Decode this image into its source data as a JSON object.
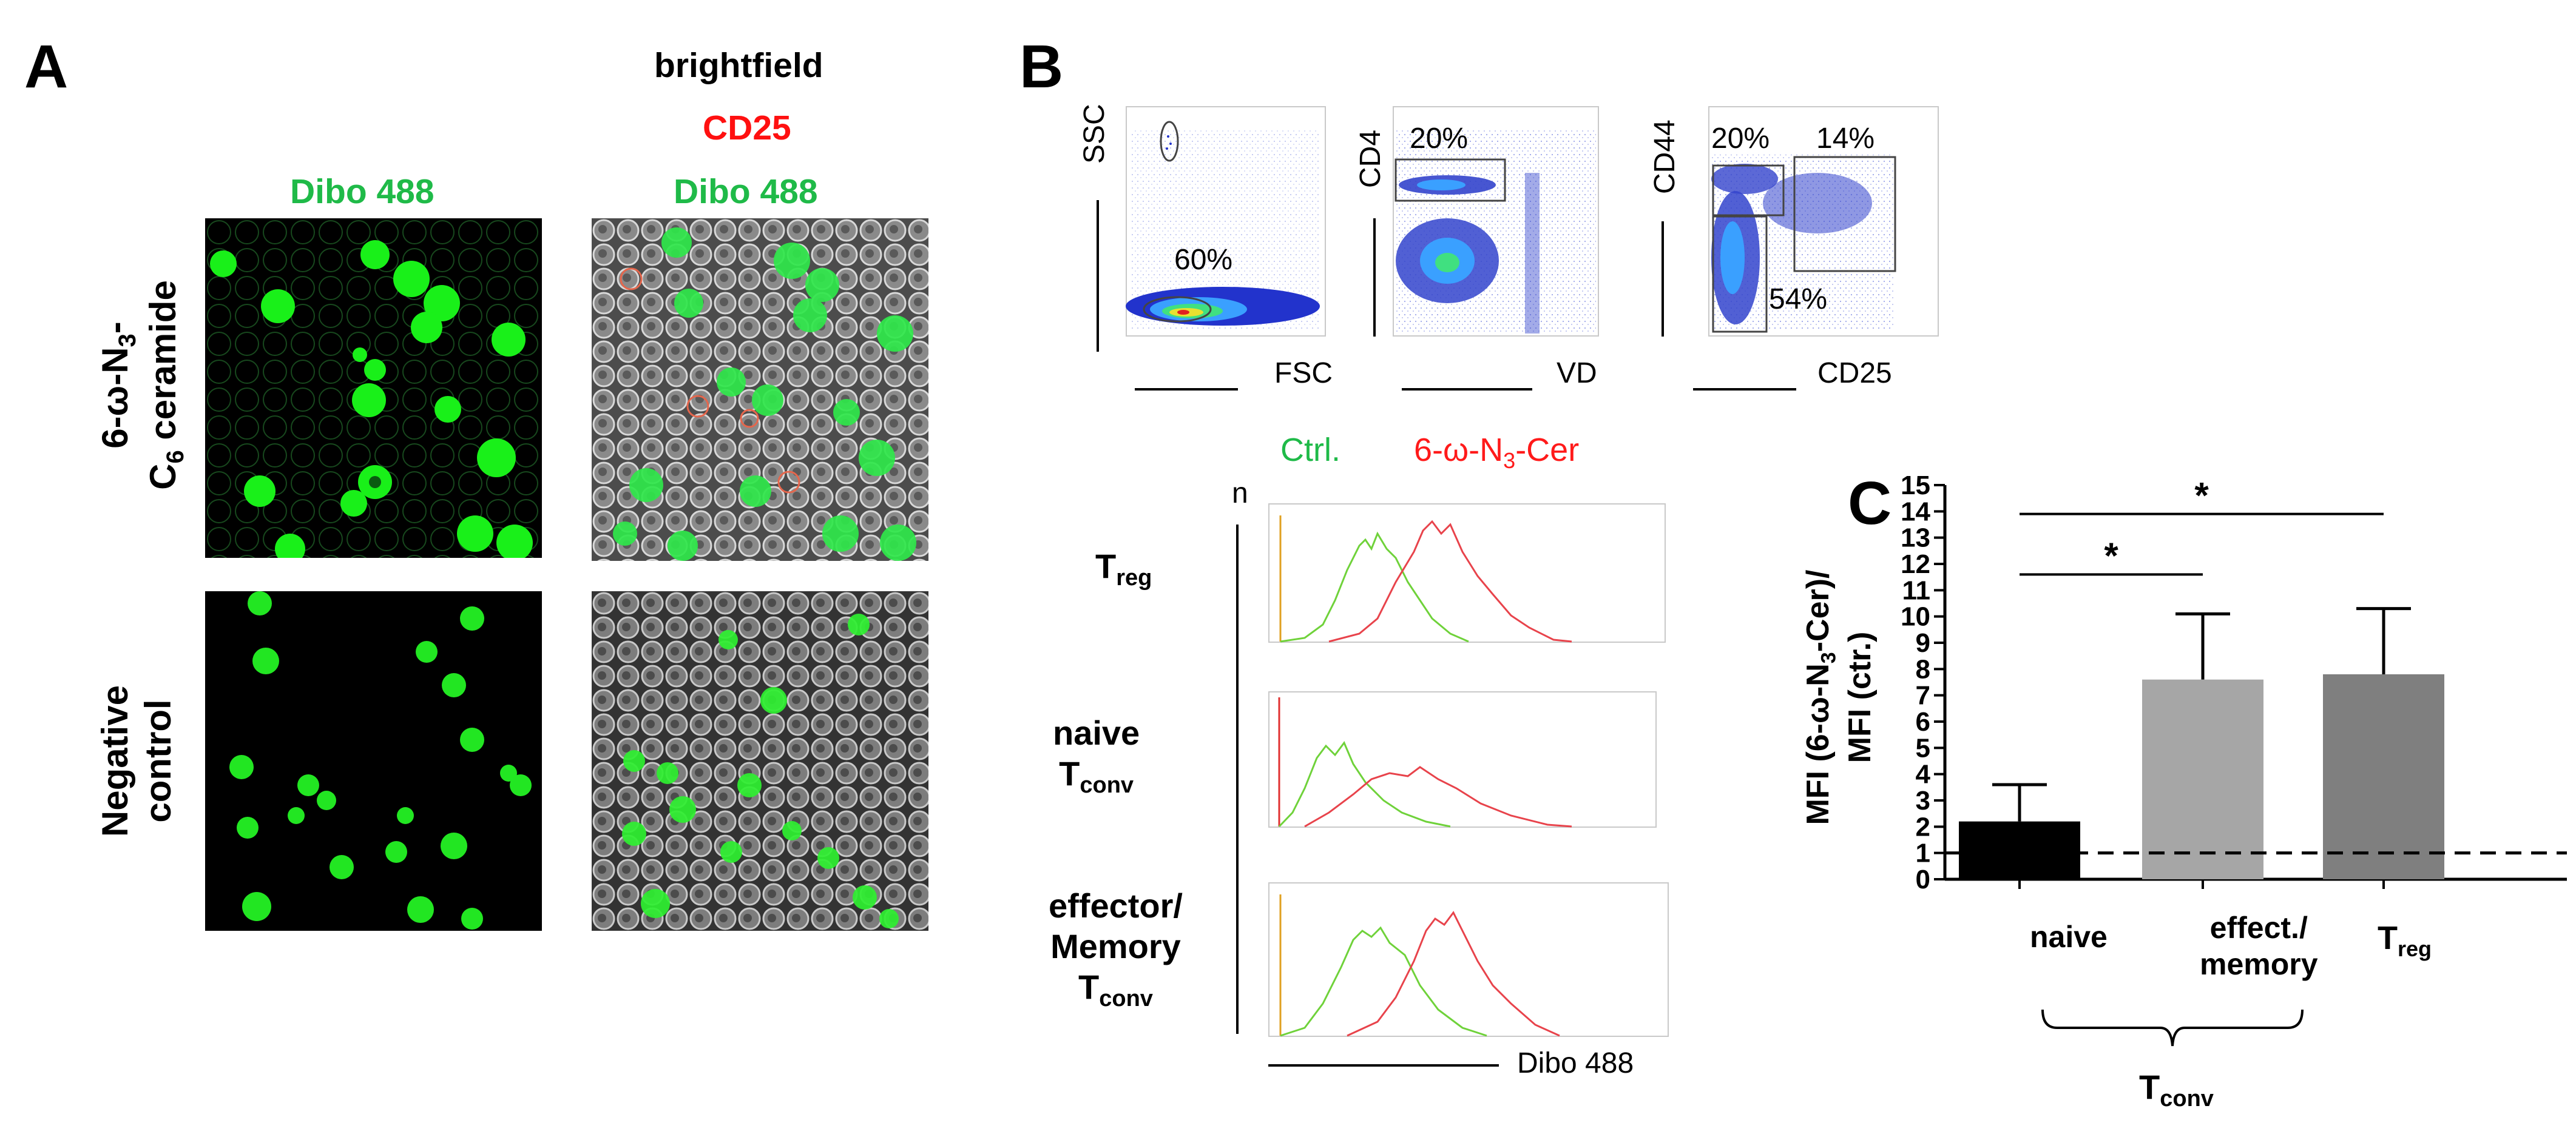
{
  "panel_a": {
    "letter": "A",
    "col1_title": "Dibo 488",
    "col2_title_1": "brightfield",
    "col2_title_2": "CD25",
    "col2_title_3": "Dibo 488",
    "row1_label_line1": "6-ω-N",
    "row1_label_sub": "3",
    "row1_label_tail": "-",
    "row1_label_line2_sub": "6",
    "row1_label_line2_prefix": "C",
    "row1_label_line2": " ceramide",
    "row2_label_line1": "Negative",
    "row2_label_line2": "control"
  },
  "panel_b": {
    "letter": "B",
    "flow1": {
      "y_label": "SSC",
      "x_label": "FSC",
      "gate_pct": "60%"
    },
    "flow2": {
      "y_label": "CD4",
      "x_label": "VD",
      "gate_pct": "20%"
    },
    "flow3": {
      "y_label": "CD44",
      "x_label": "CD25",
      "gate_tl": "20%",
      "gate_tr": "14%",
      "gate_bl": "54%"
    },
    "legend_ctrl": "Ctrl.",
    "legend_cer_prefix": "6-ω-N",
    "legend_cer_sub": "3",
    "legend_cer_suffix": "-Cer",
    "y_axis_label": "n",
    "x_axis_label": "Dibo 488",
    "row1": {
      "main": "T",
      "sub": "reg"
    },
    "row2": {
      "line1": "naive",
      "main": "T",
      "sub": "conv"
    },
    "row3": {
      "line1": "effector/",
      "line2": "Memory",
      "main": "T",
      "sub": "conv"
    },
    "colors": {
      "ctrl": "#6fd23a",
      "cer": "#e8434b"
    }
  },
  "panel_c": {
    "letter": "C",
    "group_label_main": "T",
    "group_label_sub": "conv",
    "sig_1": "*",
    "sig_2": "*",
    "y_label_line1_prefix": "MFI (6-ω-N",
    "y_label_line1_sub": "3",
    "y_label_line1_suffix": "-Cer)/",
    "y_label_line2": "MFI (ctr.)",
    "cat_naive": "naive",
    "cat_effect_1": "effect./",
    "cat_effect_2": "memory",
    "cat_treg_main": "T",
    "cat_treg_sub": "reg"
  },
  "chart_data": {
    "type": "bar",
    "categories": [
      "naive",
      "effect./memory",
      "Treg"
    ],
    "values": [
      2.2,
      7.6,
      7.8
    ],
    "errors": [
      1.4,
      2.5,
      2.5
    ],
    "colors": [
      "#000000",
      "#a6a6a6",
      "#7f7f7f"
    ],
    "reference_line": 1,
    "ylim": [
      0,
      15
    ],
    "yticks": [
      0,
      1,
      2,
      3,
      4,
      5,
      6,
      7,
      8,
      9,
      10,
      11,
      12,
      13,
      14,
      15
    ],
    "ylabel": "MFI (6-ω-N3-Cer)/MFI (ctr.)",
    "significance": [
      {
        "from": "naive",
        "to": "effect./memory",
        "label": "*"
      },
      {
        "from": "naive",
        "to": "Treg",
        "label": "*"
      }
    ]
  }
}
